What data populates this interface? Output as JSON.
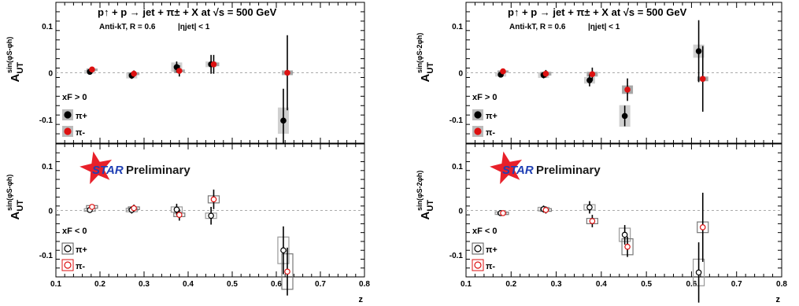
{
  "figure": {
    "title": "p↑ + p → jet + π± + X at √s = 500 GeV",
    "subtitle_left": "Anti-kT, R = 0.6",
    "subtitle_right": "|ηjet| < 1",
    "prelim_star": "STAR",
    "prelim_text": "Preliminary",
    "xlabel": "z"
  },
  "chart_data": [
    {
      "type": "scatter",
      "column": "left",
      "row": "top",
      "ylabel_main": "A",
      "ylabel_sub": "UT",
      "ylabel_sup": "sin(φS-φh)",
      "xlim": [
        0.1,
        0.8
      ],
      "ylim": [
        -0.15,
        0.15
      ],
      "xticks": [
        "0.1",
        "0.2",
        "0.3",
        "0.4",
        "0.5",
        "0.6",
        "0.7",
        "0.8"
      ],
      "yticks": [
        "0.1",
        "0",
        "-0.1"
      ],
      "ytick_values": [
        0.1,
        0,
        -0.1
      ],
      "show_title": true,
      "show_prelim": false,
      "legend_title": "xF > 0",
      "legend_entries": [
        "π+",
        "π-"
      ],
      "filled": true,
      "series": [
        {
          "name": "π+",
          "color": "#000000",
          "points": [
            {
              "x": 0.177,
              "y": 0.002,
              "err": 0.004,
              "sys": 0.004
            },
            {
              "x": 0.272,
              "y": -0.006,
              "err": 0.007,
              "sys": 0.006
            },
            {
              "x": 0.374,
              "y": 0.012,
              "err": 0.012,
              "sys": 0.01
            },
            {
              "x": 0.452,
              "y": 0.018,
              "err": 0.02,
              "sys": 0.006
            },
            {
              "x": 0.616,
              "y": -0.102,
              "err": 0.068,
              "sys": 0.028
            }
          ]
        },
        {
          "name": "π-",
          "color": "#dd1111",
          "points": [
            {
              "x": 0.182,
              "y": 0.007,
              "err": 0.004,
              "sys": 0.002
            },
            {
              "x": 0.277,
              "y": -0.002,
              "err": 0.007,
              "sys": 0.003
            },
            {
              "x": 0.38,
              "y": 0.004,
              "err": 0.012,
              "sys": 0.003
            },
            {
              "x": 0.458,
              "y": 0.018,
              "err": 0.02,
              "sys": 0.004
            },
            {
              "x": 0.625,
              "y": 0.0,
              "err": 0.08,
              "sys": 0.005
            }
          ]
        }
      ]
    },
    {
      "type": "scatter",
      "column": "right",
      "row": "top",
      "ylabel_main": "A",
      "ylabel_sub": "UT",
      "ylabel_sup": "sin(φS-2φh)",
      "xlim": [
        0.1,
        0.8
      ],
      "ylim": [
        -0.15,
        0.15
      ],
      "xticks": [
        "0.1",
        "0.2",
        "0.3",
        "0.4",
        "0.5",
        "0.6",
        "0.7",
        "0.8"
      ],
      "yticks": [
        "0.1",
        "0",
        "-0.1"
      ],
      "ytick_values": [
        0.1,
        0,
        -0.1
      ],
      "show_title": true,
      "show_prelim": false,
      "legend_title": "xF > 0",
      "legend_entries": [
        "π+",
        "π-"
      ],
      "filled": true,
      "series": [
        {
          "name": "π+",
          "color": "#000000",
          "points": [
            {
              "x": 0.177,
              "y": -0.004,
              "err": 0.004,
              "sys": 0.004
            },
            {
              "x": 0.272,
              "y": -0.005,
              "err": 0.007,
              "sys": 0.006
            },
            {
              "x": 0.374,
              "y": -0.016,
              "err": 0.013,
              "sys": 0.007
            },
            {
              "x": 0.452,
              "y": -0.092,
              "err": 0.022,
              "sys": 0.023
            },
            {
              "x": 0.616,
              "y": 0.046,
              "err": 0.066,
              "sys": 0.014
            }
          ]
        },
        {
          "name": "π-",
          "color": "#dd1111",
          "points": [
            {
              "x": 0.182,
              "y": 0.003,
              "err": 0.004,
              "sys": 0.002
            },
            {
              "x": 0.277,
              "y": -0.002,
              "err": 0.008,
              "sys": 0.004
            },
            {
              "x": 0.38,
              "y": -0.003,
              "err": 0.014,
              "sys": 0.005
            },
            {
              "x": 0.458,
              "y": -0.036,
              "err": 0.024,
              "sys": 0.009
            },
            {
              "x": 0.625,
              "y": -0.013,
              "err": 0.07,
              "sys": 0.005
            }
          ]
        }
      ]
    },
    {
      "type": "scatter",
      "column": "left",
      "row": "bottom",
      "ylabel_main": "A",
      "ylabel_sub": "UT",
      "ylabel_sup": "sin(φS-φh)",
      "xlim": [
        0.1,
        0.8
      ],
      "ylim": [
        -0.15,
        0.15
      ],
      "xticks": [
        "0.1",
        "0.2",
        "0.3",
        "0.4",
        "0.5",
        "0.6",
        "0.7",
        "0.8"
      ],
      "yticks": [
        "0.1",
        "0",
        "-0.1"
      ],
      "ytick_values": [
        0.1,
        0,
        -0.1
      ],
      "show_title": false,
      "show_prelim": true,
      "legend_title": "xF < 0",
      "legend_entries": [
        "π+",
        "π-"
      ],
      "filled": false,
      "series": [
        {
          "name": "π+",
          "color": "#000000",
          "points": [
            {
              "x": 0.177,
              "y": 0.001,
              "err": 0.004,
              "sys": 0.003
            },
            {
              "x": 0.272,
              "y": 0.001,
              "err": 0.008,
              "sys": 0.004
            },
            {
              "x": 0.374,
              "y": 0.002,
              "err": 0.013,
              "sys": 0.006
            },
            {
              "x": 0.452,
              "y": -0.012,
              "err": 0.02,
              "sys": 0.006
            },
            {
              "x": 0.616,
              "y": -0.09,
              "err": 0.054,
              "sys": 0.03
            }
          ]
        },
        {
          "name": "π-",
          "color": "#dd1111",
          "points": [
            {
              "x": 0.182,
              "y": 0.008,
              "err": 0.004,
              "sys": 0.003
            },
            {
              "x": 0.277,
              "y": 0.005,
              "err": 0.008,
              "sys": 0.003
            },
            {
              "x": 0.38,
              "y": -0.01,
              "err": 0.013,
              "sys": 0.004
            },
            {
              "x": 0.458,
              "y": 0.025,
              "err": 0.022,
              "sys": 0.008
            },
            {
              "x": 0.625,
              "y": -0.138,
              "err": 0.054,
              "sys": 0.04
            }
          ]
        }
      ]
    },
    {
      "type": "scatter",
      "column": "right",
      "row": "bottom",
      "ylabel_main": "A",
      "ylabel_sub": "UT",
      "ylabel_sup": "sin(φS-2φh)",
      "xlim": [
        0.1,
        0.8
      ],
      "ylim": [
        -0.15,
        0.15
      ],
      "xticks": [
        "0.1",
        "0.2",
        "0.3",
        "0.4",
        "0.5",
        "0.6",
        "0.7",
        "0.8"
      ],
      "yticks": [
        "0.1",
        "0",
        "-0.1"
      ],
      "ytick_values": [
        0.1,
        0,
        -0.1
      ],
      "show_title": false,
      "show_prelim": true,
      "legend_title": "xF < 0",
      "legend_entries": [
        "π+",
        "π-"
      ],
      "filled": false,
      "series": [
        {
          "name": "π+",
          "color": "#000000",
          "points": [
            {
              "x": 0.177,
              "y": -0.006,
              "err": 0.004,
              "sys": 0.003
            },
            {
              "x": 0.272,
              "y": 0.003,
              "err": 0.008,
              "sys": 0.004
            },
            {
              "x": 0.374,
              "y": 0.007,
              "err": 0.014,
              "sys": 0.006
            },
            {
              "x": 0.452,
              "y": -0.055,
              "err": 0.022,
              "sys": 0.015
            },
            {
              "x": 0.616,
              "y": -0.14,
              "err": 0.068,
              "sys": 0.03
            }
          ]
        },
        {
          "name": "π-",
          "color": "#dd1111",
          "points": [
            {
              "x": 0.182,
              "y": -0.006,
              "err": 0.004,
              "sys": 0.002
            },
            {
              "x": 0.277,
              "y": 0.001,
              "err": 0.008,
              "sys": 0.003
            },
            {
              "x": 0.38,
              "y": -0.024,
              "err": 0.014,
              "sys": 0.006
            },
            {
              "x": 0.458,
              "y": -0.082,
              "err": 0.023,
              "sys": 0.018
            },
            {
              "x": 0.625,
              "y": -0.038,
              "err": 0.078,
              "sys": 0.012
            }
          ]
        }
      ]
    }
  ]
}
